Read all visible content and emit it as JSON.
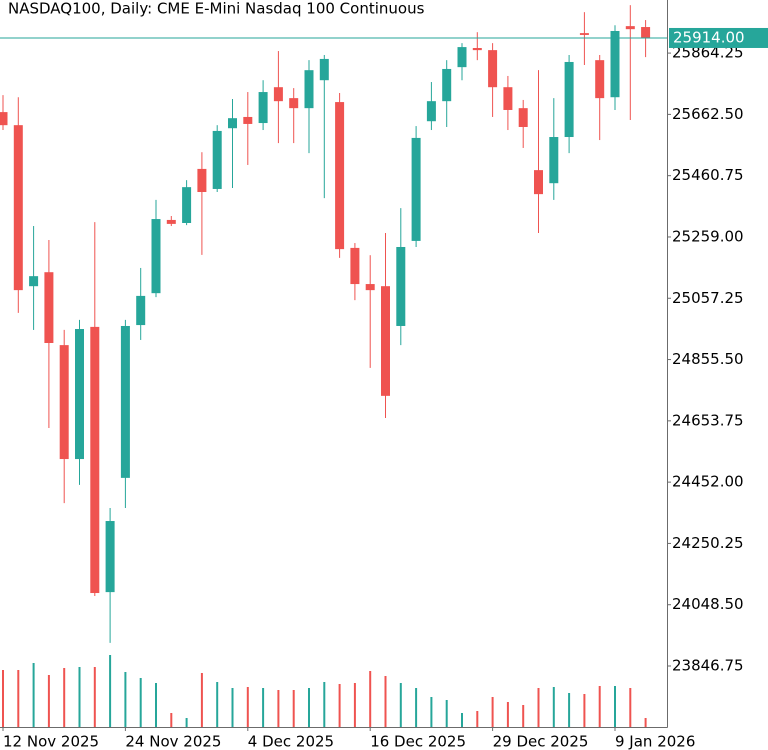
{
  "chart_data": {
    "type": "candlestick",
    "title": "NASDAQ100, Daily:  CME E-Mini Nasdaq 100 Continuous",
    "categories": [
      "12 Nov 2025",
      null,
      null,
      null,
      null,
      null,
      null,
      null,
      "24 Nov 2025",
      null,
      null,
      null,
      null,
      null,
      null,
      null,
      "4 Dec 2025",
      null,
      null,
      null,
      null,
      null,
      null,
      null,
      "16 Dec 2025",
      null,
      null,
      null,
      null,
      null,
      null,
      null,
      "29 Dec 2025",
      null,
      null,
      null,
      null,
      null,
      null,
      null,
      "9 Jan 2026",
      null,
      null
    ],
    "open": [
      25670,
      25627,
      25097,
      25143,
      24903,
      24528,
      24963,
      24090,
      24466,
      24969,
      25074,
      25315,
      25305,
      25483,
      25417,
      25617,
      25654,
      25634,
      25752,
      25716,
      25683,
      25775,
      25703,
      25223,
      25104,
      25097,
      24966,
      25246,
      25640,
      25706,
      25818,
      25881,
      25874,
      25752,
      25683,
      25479,
      25436,
      25588,
      25930,
      25841,
      25719,
      25953,
      25950
    ],
    "high": [
      25726,
      25719,
      25295,
      25249,
      24953,
      24986,
      25308,
      24367,
      24986,
      25157,
      25381,
      25328,
      25446,
      25538,
      25627,
      25713,
      25736,
      25775,
      25871,
      25749,
      25841,
      25858,
      25733,
      25239,
      25199,
      25272,
      25354,
      25624,
      25769,
      25841,
      25897,
      25933,
      25897,
      25789,
      25710,
      25808,
      25716,
      25858,
      25999,
      25858,
      25956,
      26022,
      25973
    ],
    "low": [
      25611,
      25009,
      24953,
      24630,
      24383,
      24443,
      24077,
      23923,
      24367,
      24920,
      25061,
      25295,
      25298,
      25200,
      25407,
      25420,
      25496,
      25611,
      25568,
      25568,
      25535,
      25387,
      25190,
      25051,
      24828,
      24663,
      24903,
      25226,
      25611,
      25621,
      25775,
      25841,
      25654,
      25611,
      25552,
      25272,
      25381,
      25535,
      25825,
      25578,
      25677,
      25644,
      25851
    ],
    "close": [
      25627,
      25084,
      25130,
      24910,
      24528,
      24956,
      24087,
      24324,
      24966,
      25065,
      25318,
      25302,
      25423,
      25407,
      25608,
      25650,
      25631,
      25736,
      25706,
      25683,
      25808,
      25845,
      25219,
      25104,
      25084,
      24736,
      25226,
      25585,
      25706,
      25812,
      25884,
      25874,
      25752,
      25677,
      25621,
      25400,
      25588,
      25835,
      25924,
      25716,
      25937,
      25943,
      25914
    ],
    "volume": [
      57,
      57,
      64,
      52,
      59,
      60,
      60,
      72,
      55,
      49,
      44,
      14,
      9,
      54,
      45,
      39,
      40,
      39,
      37,
      37,
      39,
      45,
      43,
      44,
      56,
      51,
      44,
      39,
      30,
      27,
      14,
      16,
      30,
      25,
      22,
      39,
      40,
      34,
      33,
      41,
      41,
      39,
      9
    ],
    "up_color": "#26a69a",
    "down_color": "#ef5350",
    "ylim": [
      23646,
      26039
    ],
    "yticks": [
      25864.25,
      {
        "value": 25662.5,
        "label": "25662.50"
      },
      25460.75,
      {
        "value": 25259,
        "label": "25259.00"
      },
      25057.25,
      {
        "value": 24855.5,
        "label": "24855.50"
      },
      24653.75,
      {
        "value": 24452,
        "label": "24452.00"
      },
      24250.25,
      {
        "value": 24048.5,
        "label": "24048.50"
      },
      23846.75
    ],
    "last_price": {
      "value": 25914,
      "label": "25914.00"
    }
  }
}
